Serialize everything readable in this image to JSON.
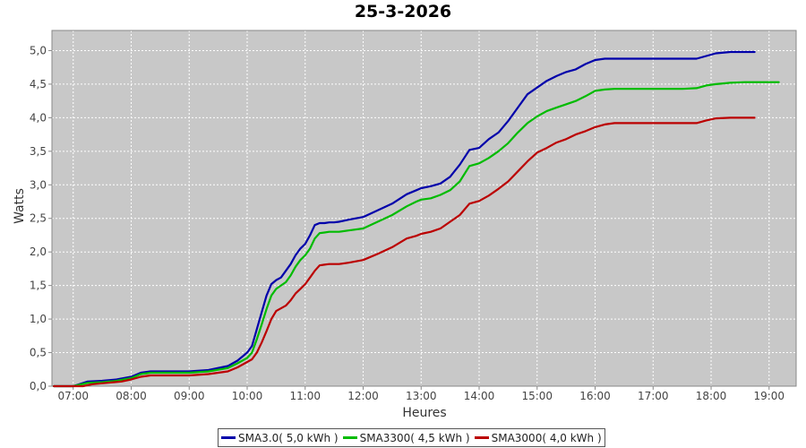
{
  "chart_data": {
    "type": "line",
    "title": "25-3-2026",
    "xlabel": "Heures",
    "ylabel": "Watts",
    "xlim": [
      "06:38",
      "19:28"
    ],
    "ylim": [
      0,
      5.3
    ],
    "x_ticks": [
      "07:00",
      "08:00",
      "09:00",
      "10:00",
      "11:00",
      "12:00",
      "13:00",
      "14:00",
      "15:00",
      "16:00",
      "17:00",
      "18:00",
      "19:00"
    ],
    "y_ticks": [
      "0,0",
      "0,5",
      "1,0",
      "1,5",
      "2,0",
      "2,5",
      "3,0",
      "3,5",
      "4,0",
      "4,5",
      "5,0"
    ],
    "grid": true,
    "legend_position": "bottom",
    "series": [
      {
        "name": "SMA3.0( 5,0 kWh )",
        "color": "#0000aa",
        "x": [
          "06:40",
          "07:00",
          "07:15",
          "07:30",
          "07:45",
          "08:00",
          "08:10",
          "08:20",
          "08:40",
          "09:00",
          "09:20",
          "09:40",
          "09:50",
          "10:00",
          "10:05",
          "10:10",
          "10:15",
          "10:20",
          "10:25",
          "10:30",
          "10:35",
          "10:40",
          "10:45",
          "10:50",
          "10:55",
          "11:00",
          "11:05",
          "11:10",
          "11:15",
          "11:20",
          "11:25",
          "11:30",
          "11:35",
          "11:45",
          "12:00",
          "12:15",
          "12:30",
          "12:45",
          "12:55",
          "13:00",
          "13:10",
          "13:20",
          "13:30",
          "13:40",
          "13:50",
          "14:00",
          "14:10",
          "14:20",
          "14:30",
          "14:40",
          "14:50",
          "15:00",
          "15:10",
          "15:20",
          "15:30",
          "15:40",
          "15:50",
          "16:00",
          "16:10",
          "16:20",
          "16:30",
          "16:45",
          "17:00",
          "17:15",
          "17:30",
          "17:45",
          "17:55",
          "18:05",
          "18:20",
          "18:35",
          "18:45"
        ],
        "y": [
          0.0,
          0.0,
          0.07,
          0.08,
          0.1,
          0.14,
          0.2,
          0.22,
          0.22,
          0.22,
          0.24,
          0.3,
          0.38,
          0.5,
          0.6,
          0.85,
          1.1,
          1.35,
          1.52,
          1.58,
          1.62,
          1.72,
          1.82,
          1.95,
          2.05,
          2.12,
          2.25,
          2.4,
          2.43,
          2.43,
          2.44,
          2.44,
          2.45,
          2.48,
          2.52,
          2.62,
          2.72,
          2.86,
          2.92,
          2.95,
          2.98,
          3.02,
          3.12,
          3.3,
          3.52,
          3.55,
          3.68,
          3.78,
          3.95,
          4.15,
          4.35,
          4.45,
          4.55,
          4.62,
          4.68,
          4.72,
          4.8,
          4.86,
          4.88,
          4.88,
          4.88,
          4.88,
          4.88,
          4.88,
          4.88,
          4.88,
          4.92,
          4.96,
          4.98,
          4.98,
          4.98
        ]
      },
      {
        "name": "SMA3300( 4,5 kWh )",
        "color": "#00bb00",
        "x": [
          "06:40",
          "07:00",
          "07:15",
          "07:30",
          "07:45",
          "08:00",
          "08:10",
          "08:20",
          "08:40",
          "09:00",
          "09:20",
          "09:40",
          "09:50",
          "10:00",
          "10:05",
          "10:10",
          "10:15",
          "10:20",
          "10:25",
          "10:30",
          "10:35",
          "10:40",
          "10:45",
          "10:50",
          "10:55",
          "11:00",
          "11:05",
          "11:10",
          "11:15",
          "11:20",
          "11:25",
          "11:30",
          "11:35",
          "11:45",
          "12:00",
          "12:15",
          "12:30",
          "12:45",
          "12:55",
          "13:00",
          "13:10",
          "13:20",
          "13:30",
          "13:40",
          "13:50",
          "14:00",
          "14:10",
          "14:20",
          "14:30",
          "14:40",
          "14:50",
          "15:00",
          "15:10",
          "15:20",
          "15:30",
          "15:40",
          "15:50",
          "16:00",
          "16:10",
          "16:20",
          "16:30",
          "16:45",
          "17:00",
          "17:15",
          "17:30",
          "17:45",
          "17:55",
          "18:05",
          "18:20",
          "18:35",
          "18:45",
          "19:00",
          "19:10"
        ],
        "y": [
          0.0,
          0.0,
          0.05,
          0.06,
          0.08,
          0.12,
          0.18,
          0.2,
          0.2,
          0.2,
          0.22,
          0.27,
          0.34,
          0.42,
          0.5,
          0.7,
          0.92,
          1.15,
          1.35,
          1.45,
          1.5,
          1.55,
          1.65,
          1.78,
          1.88,
          1.95,
          2.05,
          2.2,
          2.28,
          2.29,
          2.3,
          2.3,
          2.3,
          2.32,
          2.35,
          2.45,
          2.55,
          2.68,
          2.75,
          2.78,
          2.8,
          2.85,
          2.92,
          3.05,
          3.28,
          3.32,
          3.4,
          3.5,
          3.62,
          3.78,
          3.92,
          4.02,
          4.1,
          4.15,
          4.2,
          4.25,
          4.32,
          4.4,
          4.42,
          4.43,
          4.43,
          4.43,
          4.43,
          4.43,
          4.43,
          4.44,
          4.48,
          4.5,
          4.52,
          4.53,
          4.53,
          4.53,
          4.53
        ]
      },
      {
        "name": "SMA3000( 4,0 kWh )",
        "color": "#bb0000",
        "x": [
          "06:40",
          "07:10",
          "07:20",
          "07:35",
          "07:50",
          "08:00",
          "08:10",
          "08:20",
          "08:40",
          "09:00",
          "09:20",
          "09:40",
          "09:50",
          "10:00",
          "10:05",
          "10:10",
          "10:15",
          "10:20",
          "10:25",
          "10:30",
          "10:35",
          "10:40",
          "10:45",
          "10:50",
          "10:55",
          "11:00",
          "11:05",
          "11:10",
          "11:15",
          "11:20",
          "11:25",
          "11:30",
          "11:35",
          "11:45",
          "12:00",
          "12:15",
          "12:30",
          "12:45",
          "12:55",
          "13:00",
          "13:10",
          "13:20",
          "13:30",
          "13:40",
          "13:50",
          "14:00",
          "14:10",
          "14:20",
          "14:30",
          "14:40",
          "14:50",
          "15:00",
          "15:10",
          "15:20",
          "15:30",
          "15:40",
          "15:50",
          "16:00",
          "16:10",
          "16:20",
          "16:30",
          "16:45",
          "17:00",
          "17:15",
          "17:30",
          "17:45",
          "17:55",
          "18:05",
          "18:20",
          "18:35",
          "18:45"
        ],
        "y": [
          0.0,
          0.0,
          0.03,
          0.05,
          0.07,
          0.1,
          0.14,
          0.16,
          0.16,
          0.16,
          0.18,
          0.22,
          0.28,
          0.36,
          0.4,
          0.5,
          0.65,
          0.82,
          1.0,
          1.12,
          1.16,
          1.2,
          1.28,
          1.38,
          1.45,
          1.52,
          1.62,
          1.72,
          1.8,
          1.81,
          1.82,
          1.82,
          1.82,
          1.84,
          1.88,
          1.97,
          2.07,
          2.2,
          2.24,
          2.27,
          2.3,
          2.35,
          2.45,
          2.55,
          2.72,
          2.76,
          2.84,
          2.94,
          3.05,
          3.2,
          3.35,
          3.48,
          3.55,
          3.63,
          3.68,
          3.75,
          3.8,
          3.86,
          3.9,
          3.92,
          3.92,
          3.92,
          3.92,
          3.92,
          3.92,
          3.92,
          3.96,
          3.99,
          4.0,
          4.0,
          4.0
        ]
      }
    ]
  }
}
